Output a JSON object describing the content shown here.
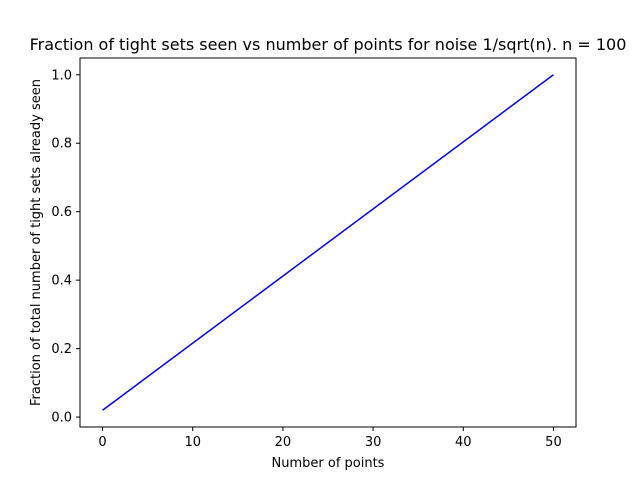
{
  "chart_data": {
    "type": "line",
    "title": "Fraction of tight sets seen vs number of points for noise 1/sqrt(n). n = 100",
    "xlabel": "Number of points",
    "ylabel": "Fraction of total number of tight sets already seen",
    "xlim": [
      -2.5,
      52.5
    ],
    "ylim": [
      -0.029,
      1.049
    ],
    "xticks": [
      0,
      10,
      20,
      30,
      40,
      50
    ],
    "xtick_labels": [
      "0",
      "10",
      "20",
      "30",
      "40",
      "50"
    ],
    "yticks": [
      0.0,
      0.2,
      0.4,
      0.6,
      0.8,
      1.0
    ],
    "ytick_labels": [
      "0.0",
      "0.2",
      "0.4",
      "0.6",
      "0.8",
      "1.0"
    ],
    "grid": false,
    "series": [
      {
        "color": "#0000ff",
        "x": [
          0,
          50
        ],
        "y": [
          0.02,
          1.0
        ]
      }
    ]
  }
}
